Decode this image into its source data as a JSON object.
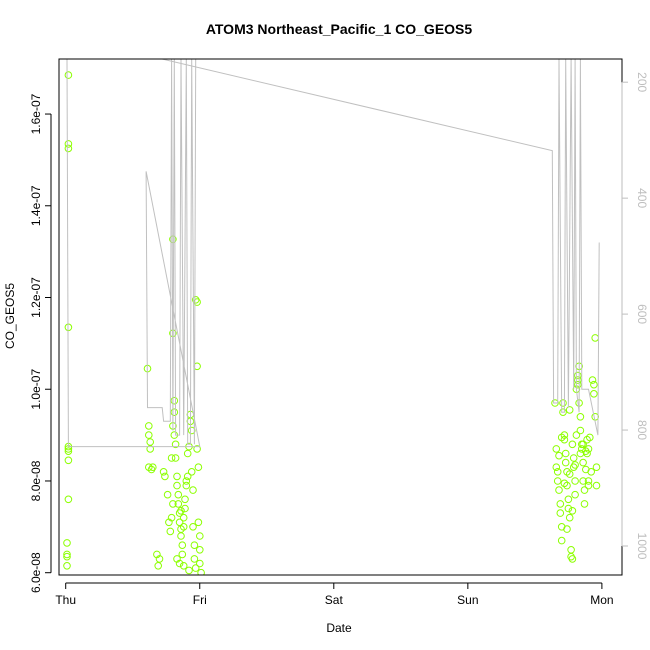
{
  "chart_data": {
    "type": "scatter",
    "title": "ATOM3 Northeast_Pacific_1 CO_GEOS5",
    "xlabel": "Date",
    "ylabel": "CO_GEOS5",
    "x_tick_labels": [
      "Thu",
      "Fri",
      "Sat",
      "Sun",
      "Mon"
    ],
    "x_tick_days": [
      0,
      1,
      2,
      3,
      4
    ],
    "xlim_days": [
      -0.05,
      4.15
    ],
    "y_ticks": [
      6e-08,
      8e-08,
      1e-07,
      1.2e-07,
      1.4e-07,
      1.6e-07
    ],
    "y_tick_labels": [
      "6.0e-08",
      "8.0e-08",
      "1.0e-07",
      "1.2e-07",
      "1.4e-07",
      "1.6e-07"
    ],
    "ylim": [
      5.95e-08,
      1.72e-07
    ],
    "y2_ticks": [
      200,
      400,
      600,
      800,
      1000
    ],
    "y2_tick_labels": [
      "200",
      "400",
      "600",
      "800",
      "1000"
    ],
    "y2lim": [
      1050,
      160
    ],
    "y2_reversed": true,
    "series": [
      {
        "color": "#8cff00",
        "kind": "points",
        "points": [
          [
            0.02,
            1.685e-07
          ],
          [
            0.02,
            1.535e-07
          ],
          [
            0.02,
            1.525e-07
          ],
          [
            0.02,
            1.135e-07
          ],
          [
            0.02,
            8.75e-08
          ],
          [
            0.02,
            8.7e-08
          ],
          [
            0.02,
            8.65e-08
          ],
          [
            0.02,
            8.45e-08
          ],
          [
            0.02,
            7.6e-08
          ],
          [
            0.01,
            6.65e-08
          ],
          [
            0.01,
            6.4e-08
          ],
          [
            0.01,
            6.35e-08
          ],
          [
            0.01,
            6.15e-08
          ],
          [
            0.61,
            1.045e-07
          ],
          [
            0.62,
            9.2e-08
          ],
          [
            0.62,
            9e-08
          ],
          [
            0.63,
            8.85e-08
          ],
          [
            0.63,
            8.7e-08
          ],
          [
            0.62,
            8.3e-08
          ],
          [
            0.64,
            8.25e-08
          ],
          [
            0.65,
            8.3e-08
          ],
          [
            0.68,
            6.4e-08
          ],
          [
            0.7,
            6.3e-08
          ],
          [
            0.69,
            6.15e-08
          ],
          [
            0.73,
            8.2e-08
          ],
          [
            0.74,
            8.1e-08
          ],
          [
            0.76,
            7.7e-08
          ],
          [
            0.77,
            7.1e-08
          ],
          [
            0.78,
            6.9e-08
          ],
          [
            0.79,
            7.2e-08
          ],
          [
            0.8,
            7.5e-08
          ],
          [
            0.8,
            1.327e-07
          ],
          [
            0.8,
            1.122e-07
          ],
          [
            0.81,
            9.75e-08
          ],
          [
            0.81,
            9.5e-08
          ],
          [
            0.8,
            9.2e-08
          ],
          [
            0.81,
            9e-08
          ],
          [
            0.82,
            8.8e-08
          ],
          [
            0.82,
            8.5e-08
          ],
          [
            0.83,
            8.1e-08
          ],
          [
            0.83,
            7.9e-08
          ],
          [
            0.84,
            7.7e-08
          ],
          [
            0.84,
            7.5e-08
          ],
          [
            0.85,
            7.3e-08
          ],
          [
            0.85,
            7.1e-08
          ],
          [
            0.86,
            6.95e-08
          ],
          [
            0.86,
            6.8e-08
          ],
          [
            0.87,
            6.6e-08
          ],
          [
            0.87,
            6.4e-08
          ],
          [
            0.88,
            7e-08
          ],
          [
            0.88,
            7.2e-08
          ],
          [
            0.89,
            7.4e-08
          ],
          [
            0.89,
            7.6e-08
          ],
          [
            0.9,
            7.9e-08
          ],
          [
            0.9,
            8e-08
          ],
          [
            0.91,
            8.6e-08
          ],
          [
            0.92,
            8.75e-08
          ],
          [
            0.93,
            9.45e-08
          ],
          [
            0.93,
            9.3e-08
          ],
          [
            0.94,
            9.1e-08
          ],
          [
            0.94,
            8.2e-08
          ],
          [
            0.95,
            7.8e-08
          ],
          [
            0.95,
            7e-08
          ],
          [
            0.96,
            6.6e-08
          ],
          [
            0.96,
            6.3e-08
          ],
          [
            0.97,
            6.1e-08
          ],
          [
            0.97,
            1.195e-07
          ],
          [
            0.98,
            1.19e-07
          ],
          [
            0.98,
            1.05e-07
          ],
          [
            0.98,
            8.7e-08
          ],
          [
            0.99,
            8.3e-08
          ],
          [
            0.99,
            7.1e-08
          ],
          [
            1.0,
            6.8e-08
          ],
          [
            1.0,
            6.5e-08
          ],
          [
            1.0,
            6.2e-08
          ],
          [
            1.01,
            6e-08
          ],
          [
            0.83,
            6.3e-08
          ],
          [
            0.85,
            6.2e-08
          ],
          [
            0.79,
            8.5e-08
          ],
          [
            0.86,
            7.35e-08
          ],
          [
            0.88,
            6.15e-08
          ],
          [
            0.91,
            8.1e-08
          ],
          [
            0.92,
            6.05e-08
          ],
          [
            3.65,
            9.7e-08
          ],
          [
            3.66,
            8.7e-08
          ],
          [
            3.66,
            8.3e-08
          ],
          [
            3.67,
            8.2e-08
          ],
          [
            3.67,
            8e-08
          ],
          [
            3.68,
            7.8e-08
          ],
          [
            3.69,
            7.5e-08
          ],
          [
            3.69,
            7.3e-08
          ],
          [
            3.7,
            7e-08
          ],
          [
            3.7,
            6.7e-08
          ],
          [
            3.71,
            9.5e-08
          ],
          [
            3.71,
            9.7e-08
          ],
          [
            3.72,
            9e-08
          ],
          [
            3.72,
            8.9e-08
          ],
          [
            3.73,
            8.6e-08
          ],
          [
            3.73,
            8.4e-08
          ],
          [
            3.74,
            8.2e-08
          ],
          [
            3.74,
            7.9e-08
          ],
          [
            3.75,
            7.6e-08
          ],
          [
            3.75,
            7.4e-08
          ],
          [
            3.76,
            7.2e-08
          ],
          [
            3.76,
            9.55e-08
          ],
          [
            3.77,
            6.5e-08
          ],
          [
            3.77,
            6.35e-08
          ],
          [
            3.78,
            6.3e-08
          ],
          [
            3.78,
            8.8e-08
          ],
          [
            3.79,
            8.5e-08
          ],
          [
            3.79,
            8.3e-08
          ],
          [
            3.8,
            8e-08
          ],
          [
            3.8,
            7.7e-08
          ],
          [
            3.81,
            9e-08
          ],
          [
            3.81,
            1e-07
          ],
          [
            3.82,
            1.02e-07
          ],
          [
            3.82,
            1.03e-07
          ],
          [
            3.83,
            1.05e-07
          ],
          [
            3.83,
            9.7e-08
          ],
          [
            3.84,
            9.4e-08
          ],
          [
            3.84,
            8.6e-08
          ],
          [
            3.85,
            8.8e-08
          ],
          [
            3.85,
            8.7e-08
          ],
          [
            3.86,
            8.4e-08
          ],
          [
            3.86,
            8e-08
          ],
          [
            3.87,
            7.8e-08
          ],
          [
            3.87,
            7.5e-08
          ],
          [
            3.88,
            8.65e-08
          ],
          [
            3.89,
            8.9e-08
          ],
          [
            3.89,
            8.6e-08
          ],
          [
            3.9,
            8e-08
          ],
          [
            3.9,
            7.9e-08
          ],
          [
            3.91,
            8.95e-08
          ],
          [
            3.92,
            8.2e-08
          ],
          [
            3.93,
            1.02e-07
          ],
          [
            3.94,
            1.01e-07
          ],
          [
            3.94,
            9.9e-08
          ],
          [
            3.95,
            9.4e-08
          ],
          [
            3.95,
            1.112e-07
          ],
          [
            3.96,
            8.3e-08
          ],
          [
            3.96,
            7.9e-08
          ],
          [
            3.68,
            8.55e-08
          ],
          [
            3.7,
            8.95e-08
          ],
          [
            3.72,
            7.95e-08
          ],
          [
            3.74,
            6.95e-08
          ],
          [
            3.76,
            8.15e-08
          ],
          [
            3.78,
            7.35e-08
          ],
          [
            3.8,
            8.35e-08
          ],
          [
            3.82,
            1.01e-07
          ],
          [
            3.84,
            9.1e-08
          ],
          [
            3.86,
            8.8e-08
          ],
          [
            3.88,
            8.25e-08
          ],
          [
            3.9,
            8.7e-08
          ]
        ]
      },
      {
        "color": "#c0c0c0",
        "kind": "line",
        "points": [
          [
            0.0,
            1.72e-07
          ],
          [
            0.01,
            1.72e-07
          ],
          [
            0.02,
            8.75e-08
          ],
          [
            0.03,
            8.75e-08
          ],
          [
            0.6,
            8.75e-08
          ],
          [
            1.0,
            8.75e-08
          ],
          [
            0.6,
            1.475e-07
          ],
          [
            0.61,
            9.6e-08
          ],
          [
            0.72,
            9.6e-08
          ],
          [
            0.73,
            9.3e-08
          ],
          [
            0.78,
            9.3e-08
          ],
          [
            0.79,
            1.72e-07
          ],
          [
            0.8,
            9.1e-08
          ],
          [
            0.81,
            1.72e-07
          ],
          [
            0.82,
            9e-08
          ],
          [
            0.85,
            9e-08
          ],
          [
            0.86,
            1.72e-07
          ],
          [
            0.88,
            9e-08
          ],
          [
            0.9,
            1.72e-07
          ],
          [
            0.91,
            8.8e-08
          ],
          [
            0.93,
            8.8e-08
          ],
          [
            0.94,
            1.72e-07
          ],
          [
            0.96,
            8.8e-08
          ],
          [
            0.97,
            1.72e-07
          ],
          [
            0.98,
            1.72e-07
          ],
          [
            0.5,
            1.735e-07
          ],
          [
            3.63,
            1.52e-07
          ],
          [
            3.64,
            9.7e-08
          ],
          [
            3.67,
            9.7e-08
          ],
          [
            3.68,
            1.72e-07
          ],
          [
            3.7,
            9.5e-08
          ],
          [
            3.72,
            9.5e-08
          ],
          [
            3.73,
            1.72e-07
          ],
          [
            3.75,
            9.6e-08
          ],
          [
            3.77,
            1.72e-07
          ],
          [
            3.79,
            1e-07
          ],
          [
            3.8,
            1.72e-07
          ],
          [
            3.81,
            1e-07
          ],
          [
            3.83,
            9.5e-08
          ],
          [
            3.84,
            1.72e-07
          ],
          [
            3.85,
            1e-07
          ],
          [
            3.9,
            1e-07
          ],
          [
            3.97,
            9e-08
          ],
          [
            3.98,
            1.32e-07
          ]
        ]
      }
    ],
    "grid": false,
    "legend": "none"
  }
}
